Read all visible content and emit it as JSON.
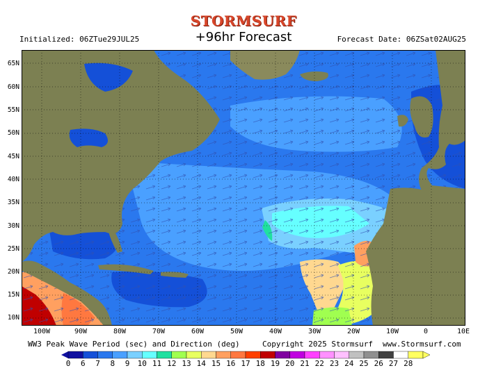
{
  "header": {
    "logo": "STORMSURF",
    "title": "+96hr Forecast",
    "initialized": "Initialized: 06ZTue29JUL25",
    "forecast_date": "Forecast Date: 06ZSat02AUG25"
  },
  "map": {
    "lat_labels": [
      "65N",
      "60N",
      "55N",
      "50N",
      "45N",
      "40N",
      "35N",
      "30N",
      "25N",
      "20N",
      "15N",
      "10N"
    ],
    "lon_labels": [
      "100W",
      "90W",
      "80W",
      "70W",
      "60W",
      "50W",
      "40W",
      "30W",
      "20W",
      "10W",
      "0",
      "10E"
    ]
  },
  "footer": {
    "caption": "WW3 Peak Wave Period (sec) and Direction (deg)",
    "copyright": "Copyright 2025 Stormsurf",
    "site": "www.Stormsurf.com"
  },
  "colorbar": {
    "ticks": [
      "0",
      "6",
      "7",
      "8",
      "9",
      "10",
      "11",
      "12",
      "13",
      "14",
      "15",
      "16",
      "17",
      "18",
      "19",
      "20",
      "21",
      "22",
      "23",
      "24",
      "25",
      "26",
      "27",
      "28"
    ],
    "colors": [
      "#1010a0",
      "#1450d8",
      "#2a78ee",
      "#4aa0ff",
      "#7ad0ff",
      "#66ffff",
      "#20e0a0",
      "#a0ff50",
      "#e8ff60",
      "#ffd890",
      "#ffa060",
      "#ff7840",
      "#ff4000",
      "#c00000",
      "#8000a0",
      "#c000e0",
      "#ff40ff",
      "#ff90ff",
      "#ffc0ff",
      "#c0c0c0",
      "#909090",
      "#404040",
      "#ffffff",
      "#ffff60"
    ]
  }
}
